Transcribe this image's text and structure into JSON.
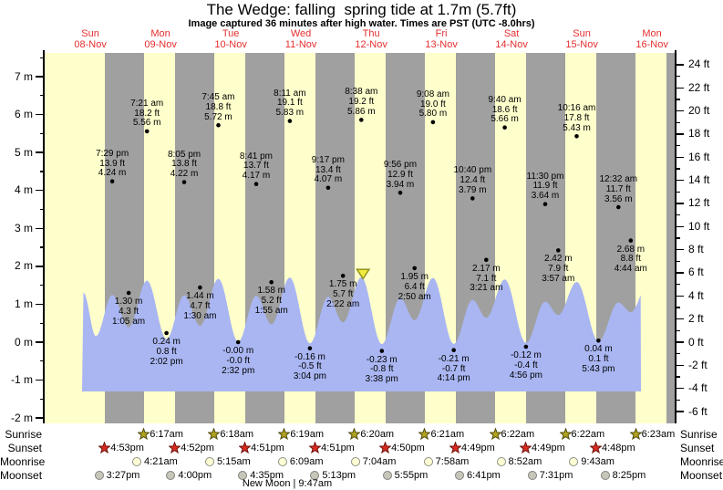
{
  "header": {
    "title": "The Wedge: falling  spring tide at 1.7m (5.7ft)",
    "subtitle": "Image captured 36 minutes after high water. Times are PST (UTC -8.0hrs)"
  },
  "colors": {
    "day_band": "#ffffcc",
    "night_band": "#a0a0a0",
    "tide_fill": "#a9b6f2",
    "date_red": "#e62e2e",
    "dot": "#000000",
    "sunrise_star_fill": "#b3a51e",
    "sunrise_star_stroke": "#4f4a0e",
    "sunset_star_fill": "#da2b20",
    "sunset_star_stroke": "#6e120c",
    "moonrise_fill": "#ffffd6",
    "moonrise_stroke": "#8f8f85",
    "moonset_fill": "#c6c6ba",
    "moonset_stroke": "#82827a",
    "marker_fill": "#f2ea3e",
    "marker_stroke": "#8b8b15"
  },
  "days": [
    {
      "name": "Sun",
      "date": "08-Nov"
    },
    {
      "name": "Mon",
      "date": "09-Nov"
    },
    {
      "name": "Tue",
      "date": "10-Nov"
    },
    {
      "name": "Wed",
      "date": "11-Nov"
    },
    {
      "name": "Thu",
      "date": "12-Nov"
    },
    {
      "name": "Fri",
      "date": "13-Nov"
    },
    {
      "name": "Sat",
      "date": "14-Nov"
    },
    {
      "name": "Sun",
      "date": "15-Nov"
    },
    {
      "name": "Mon",
      "date": "16-Nov"
    }
  ],
  "axes": {
    "left_ticks": [
      {
        "v": 7,
        "label": "7 m"
      },
      {
        "v": 6,
        "label": "6 m"
      },
      {
        "v": 5,
        "label": "5 m"
      },
      {
        "v": 4,
        "label": "4 m"
      },
      {
        "v": 3,
        "label": "3 m"
      },
      {
        "v": 2,
        "label": "2 m"
      },
      {
        "v": 1,
        "label": "1 m"
      },
      {
        "v": 0,
        "label": "0 m"
      },
      {
        "v": -1,
        "label": "-1 m"
      },
      {
        "v": -2,
        "label": "-2 m"
      }
    ],
    "right_ticks": [
      {
        "v": 24,
        "label": "24 ft"
      },
      {
        "v": 22,
        "label": "22 ft"
      },
      {
        "v": 20,
        "label": "20 ft"
      },
      {
        "v": 18,
        "label": "18 ft"
      },
      {
        "v": 16,
        "label": "16 ft"
      },
      {
        "v": 14,
        "label": "14 ft"
      },
      {
        "v": 12,
        "label": "12 ft"
      },
      {
        "v": 10,
        "label": "10 ft"
      },
      {
        "v": 8,
        "label": "8 ft"
      },
      {
        "v": 6,
        "label": "6 ft"
      },
      {
        "v": 4,
        "label": "4 ft"
      },
      {
        "v": 2,
        "label": "2 ft"
      },
      {
        "v": 0,
        "label": "0 ft"
      },
      {
        "v": -2,
        "label": "-2 ft"
      },
      {
        "v": -4,
        "label": "-4 ft"
      },
      {
        "v": -6,
        "label": "-6 ft"
      }
    ]
  },
  "chart_data": {
    "type": "area",
    "title": "The Wedge: falling  spring tide at 1.7m (5.7ft)",
    "x_categories": [
      "Sun 08-Nov",
      "Mon 09-Nov",
      "Tue 10-Nov",
      "Wed 11-Nov",
      "Thu 12-Nov",
      "Fri 13-Nov",
      "Sat 14-Nov",
      "Sun 15-Nov",
      "Mon 16-Nov"
    ],
    "y_axis_left": {
      "unit": "m",
      "ticks": [
        7,
        6,
        5,
        4,
        3,
        2,
        1,
        0,
        -1,
        -2
      ]
    },
    "y_axis_right": {
      "unit": "ft",
      "ticks": [
        24,
        22,
        20,
        18,
        16,
        14,
        12,
        10,
        8,
        6,
        4,
        2,
        0,
        -2,
        -4,
        -6
      ]
    },
    "grid": false,
    "legend": false,
    "tide_events": [
      {
        "day": 0,
        "kind": "high",
        "time": "7:29 pm",
        "ft_label": "13.9 ft",
        "m_label": "4.24 m",
        "height_m": 4.24
      },
      {
        "day": 1,
        "kind": "low",
        "time": "1:05 am",
        "ft_label": "4.3 ft",
        "m_label": "1.30 m",
        "height_m": 1.3
      },
      {
        "day": 1,
        "kind": "high",
        "time": "7:21 am",
        "ft_label": "18.2 ft",
        "m_label": "5.56 m",
        "height_m": 5.56
      },
      {
        "day": 1,
        "kind": "low",
        "time": "2:02 pm",
        "ft_label": "0.8 ft",
        "m_label": "0.24 m",
        "height_m": 0.24
      },
      {
        "day": 1,
        "kind": "high",
        "time": "8:05 pm",
        "ft_label": "13.8 ft",
        "m_label": "4.22 m",
        "height_m": 4.22
      },
      {
        "day": 2,
        "kind": "low",
        "time": "1:30 am",
        "ft_label": "4.7 ft",
        "m_label": "1.44 m",
        "height_m": 1.44
      },
      {
        "day": 2,
        "kind": "high",
        "time": "7:45 am",
        "ft_label": "18.8 ft",
        "m_label": "5.72 m",
        "height_m": 5.72
      },
      {
        "day": 2,
        "kind": "low",
        "time": "2:32 pm",
        "ft_label": "-0.0 ft",
        "m_label": "-0.00 m",
        "height_m": -0.0
      },
      {
        "day": 2,
        "kind": "high",
        "time": "8:41 pm",
        "ft_label": "13.7 ft",
        "m_label": "4.17 m",
        "height_m": 4.17
      },
      {
        "day": 3,
        "kind": "low",
        "time": "1:55 am",
        "ft_label": "5.2 ft",
        "m_label": "1.58 m",
        "height_m": 1.58
      },
      {
        "day": 3,
        "kind": "high",
        "time": "8:11 am",
        "ft_label": "19.1 ft",
        "m_label": "5.83 m",
        "height_m": 5.83
      },
      {
        "day": 3,
        "kind": "low",
        "time": "3:04 pm",
        "ft_label": "-0.5 ft",
        "m_label": "-0.16 m",
        "height_m": -0.16
      },
      {
        "day": 3,
        "kind": "high",
        "time": "9:17 pm",
        "ft_label": "13.4 ft",
        "m_label": "4.07 m",
        "height_m": 4.07
      },
      {
        "day": 4,
        "kind": "low",
        "time": "2:22 am",
        "ft_label": "5.7 ft",
        "m_label": "1.75 m",
        "height_m": 1.75
      },
      {
        "day": 4,
        "kind": "high",
        "time": "8:38 am",
        "ft_label": "19.2 ft",
        "m_label": "5.86 m",
        "height_m": 5.86
      },
      {
        "day": 4,
        "kind": "low",
        "time": "3:38 pm",
        "ft_label": "-0.8 ft",
        "m_label": "-0.23 m",
        "height_m": -0.23
      },
      {
        "day": 4,
        "kind": "high",
        "time": "9:56 pm",
        "ft_label": "12.9 ft",
        "m_label": "3.94 m",
        "height_m": 3.94
      },
      {
        "day": 5,
        "kind": "low",
        "time": "2:50 am",
        "ft_label": "6.4 ft",
        "m_label": "1.95 m",
        "height_m": 1.95
      },
      {
        "day": 5,
        "kind": "high",
        "time": "9:08 am",
        "ft_label": "19.0 ft",
        "m_label": "5.80 m",
        "height_m": 5.8
      },
      {
        "day": 5,
        "kind": "low",
        "time": "4:14 pm",
        "ft_label": "-0.7 ft",
        "m_label": "-0.21 m",
        "height_m": -0.21
      },
      {
        "day": 5,
        "kind": "high",
        "time": "10:40 pm",
        "ft_label": "12.4 ft",
        "m_label": "3.79 m",
        "height_m": 3.79
      },
      {
        "day": 6,
        "kind": "low",
        "time": "3:21 am",
        "ft_label": "7.1 ft",
        "m_label": "2.17 m",
        "height_m": 2.17
      },
      {
        "day": 6,
        "kind": "high",
        "time": "9:40 am",
        "ft_label": "18.6 ft",
        "m_label": "5.66 m",
        "height_m": 5.66
      },
      {
        "day": 6,
        "kind": "low",
        "time": "4:56 pm",
        "ft_label": "-0.4 ft",
        "m_label": "-0.12 m",
        "height_m": -0.12
      },
      {
        "day": 6,
        "kind": "high",
        "time": "11:30 pm",
        "ft_label": "11.9 ft",
        "m_label": "3.64 m",
        "height_m": 3.64
      },
      {
        "day": 7,
        "kind": "low",
        "time": "3:57 am",
        "ft_label": "7.9 ft",
        "m_label": "2.42 m",
        "height_m": 2.42
      },
      {
        "day": 7,
        "kind": "high",
        "time": "10:16 am",
        "ft_label": "17.8 ft",
        "m_label": "5.43 m",
        "height_m": 5.43
      },
      {
        "day": 7,
        "kind": "low",
        "time": "5:43 pm",
        "ft_label": "0.1 ft",
        "m_label": "0.04 m",
        "height_m": 0.04
      },
      {
        "day": 8,
        "kind": "high",
        "time": "12:32 am",
        "ft_label": "11.7 ft",
        "m_label": "3.56 m",
        "height_m": 3.56
      },
      {
        "day": 8,
        "kind": "low",
        "time": "4:44 am",
        "ft_label": "8.8 ft",
        "m_label": "2.68 m",
        "height_m": 2.68
      }
    ],
    "current_time_marker": {
      "day": 4,
      "time": "9:14 am",
      "note_height_m": 1.7
    },
    "curve_edge_anchors": {
      "start": [
        {
          "t": 0.401,
          "v": 4.45
        },
        {
          "t": 0.578,
          "v": 0.5
        }
      ],
      "end": [
        {
          "t": 8.45,
          "v": 5.3
        }
      ],
      "last_night_sunset": {
        "day": 8,
        "time": "4:48 pm"
      }
    }
  },
  "sun_moon": {
    "rows": [
      {
        "key": "sunrise",
        "label": "Sunrise",
        "icon": "sunrise-star",
        "times": [
          {
            "day": 1,
            "time": "6:17am"
          },
          {
            "day": 2,
            "time": "6:18am"
          },
          {
            "day": 3,
            "time": "6:19am"
          },
          {
            "day": 4,
            "time": "6:20am"
          },
          {
            "day": 5,
            "time": "6:21am"
          },
          {
            "day": 6,
            "time": "6:22am"
          },
          {
            "day": 7,
            "time": "6:22am"
          },
          {
            "day": 8,
            "time": "6:23am"
          }
        ]
      },
      {
        "key": "sunset",
        "label": "Sunset",
        "icon": "sunset-star",
        "times": [
          {
            "day": 0,
            "time": "4:53pm"
          },
          {
            "day": 1,
            "time": "4:52pm"
          },
          {
            "day": 2,
            "time": "4:51pm"
          },
          {
            "day": 3,
            "time": "4:51pm"
          },
          {
            "day": 4,
            "time": "4:50pm"
          },
          {
            "day": 5,
            "time": "4:49pm"
          },
          {
            "day": 6,
            "time": "4:49pm"
          },
          {
            "day": 7,
            "time": "4:48pm"
          }
        ]
      },
      {
        "key": "moonrise",
        "label": "Moonrise",
        "icon": "moonrise-circle",
        "times": [
          {
            "day": 1,
            "time": "4:21am"
          },
          {
            "day": 2,
            "time": "5:15am"
          },
          {
            "day": 3,
            "time": "6:09am"
          },
          {
            "day": 4,
            "time": "7:04am"
          },
          {
            "day": 5,
            "time": "7:58am"
          },
          {
            "day": 6,
            "time": "8:52am"
          },
          {
            "day": 7,
            "time": "9:43am"
          }
        ]
      },
      {
        "key": "moonset",
        "label": "Moonset",
        "icon": "moonset-circle",
        "times": [
          {
            "day": 0,
            "time": "3:27pm"
          },
          {
            "day": 1,
            "time": "4:00pm"
          },
          {
            "day": 2,
            "time": "4:35pm"
          },
          {
            "day": 3,
            "time": "5:13pm"
          },
          {
            "day": 4,
            "time": "5:55pm"
          },
          {
            "day": 5,
            "time": "6:41pm"
          },
          {
            "day": 6,
            "time": "7:31pm"
          },
          {
            "day": 7,
            "time": "8:25pm"
          }
        ]
      }
    ],
    "new_moon_label": "New Moon | 9:47am"
  }
}
